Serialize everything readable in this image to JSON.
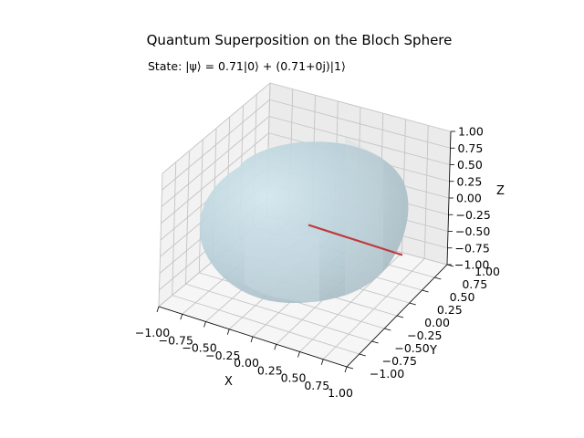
{
  "chart_data": {
    "type": "3d-surface",
    "title": "Quantum Superposition on the Bloch Sphere",
    "subtitle": "State: |ψ⟩ = 0.71|0⟩ + (0.71+0j)|1⟩",
    "xlabel": "X",
    "ylabel": "Y",
    "zlabel": "Z",
    "xlim": [
      -1,
      1
    ],
    "ylim": [
      -1,
      1
    ],
    "zlim": [
      -1,
      1
    ],
    "x_ticks": [
      "−1.00",
      "−0.75",
      "−0.50",
      "−0.25",
      "0.00",
      "0.25",
      "0.50",
      "0.75",
      "1.00"
    ],
    "y_ticks": [
      "−1.00",
      "−0.75",
      "−0.50",
      "−0.25",
      "0.00",
      "0.25",
      "0.50",
      "0.75",
      "1.00"
    ],
    "z_ticks": [
      "−1.00",
      "−0.75",
      "−0.50",
      "−0.25",
      "0.00",
      "0.25",
      "0.50",
      "0.75",
      "1.00"
    ],
    "tick_values": [
      -1,
      -0.75,
      -0.5,
      -0.25,
      0,
      0.25,
      0.5,
      0.75,
      1
    ],
    "grid": true,
    "sphere": {
      "radius": 1,
      "center": [
        0,
        0,
        0
      ],
      "color": "#add8e6",
      "edge_tone": "#93a3aa"
    },
    "state_vector": {
      "from": [
        0,
        0,
        0
      ],
      "to": [
        1,
        0,
        0
      ],
      "color": "#c0393b"
    },
    "amplitudes": {
      "alpha": "0.71",
      "beta": "(0.71+0j)"
    }
  }
}
